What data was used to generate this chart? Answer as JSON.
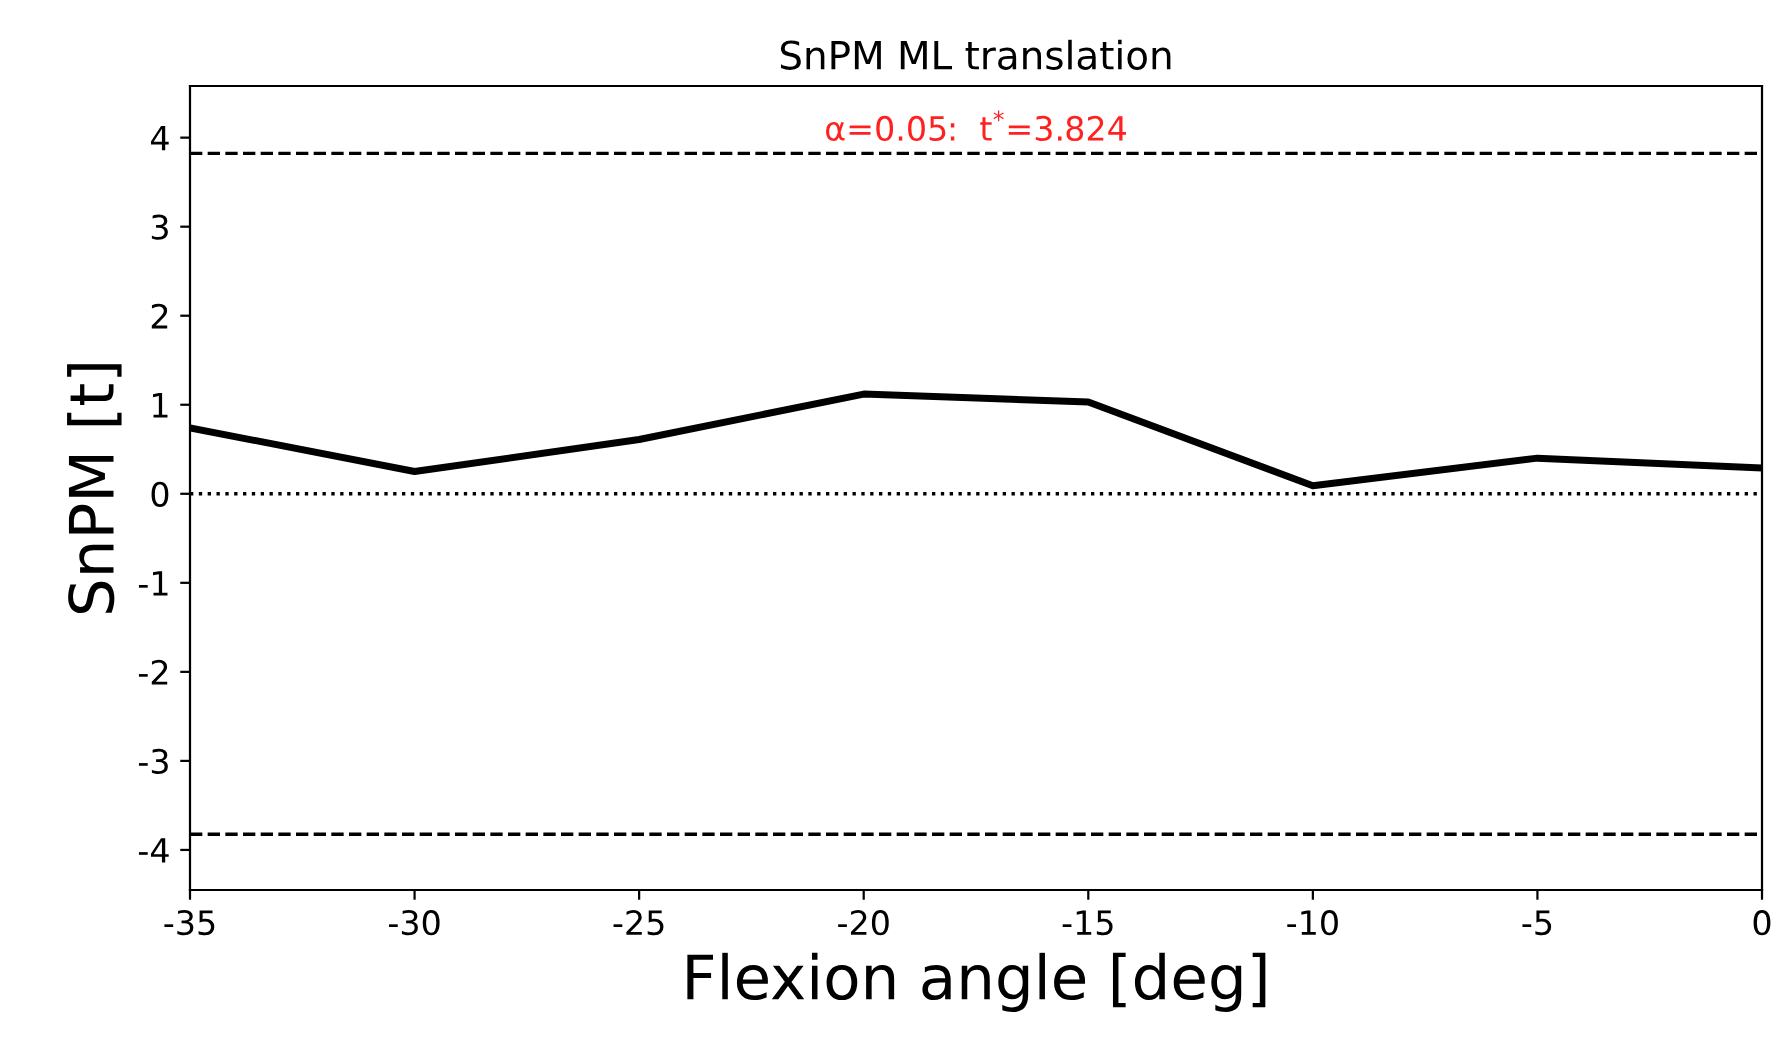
{
  "chart_data": {
    "type": "line",
    "title": "SnPM ML translation",
    "xlabel": "Flexion angle [deg]",
    "ylabel": "SnPM [t]",
    "x": [
      -35,
      -30,
      -25,
      -20,
      -15,
      -10,
      -5,
      0
    ],
    "series": [
      {
        "color": "#000000",
        "values": [
          0.74,
          0.25,
          0.61,
          1.12,
          1.03,
          0.09,
          0.4,
          0.29
        ]
      }
    ],
    "xlim": [
      -35,
      0
    ],
    "xticks": [
      -35,
      -30,
      -25,
      -20,
      -15,
      -10,
      -5,
      0
    ],
    "ylim": [
      -4.45,
      4.58
    ],
    "yticks": [
      -4,
      -3,
      -2,
      -1,
      0,
      1,
      2,
      3,
      4
    ],
    "ref_lines": [
      {
        "axis": "y",
        "value": 3.824,
        "color": "#000000",
        "line_style": "dashed"
      },
      {
        "axis": "y",
        "value": -3.824,
        "color": "#000000",
        "line_style": "dashed"
      },
      {
        "axis": "y",
        "value": 0,
        "color": "#000000",
        "line_style": "dotted"
      }
    ],
    "annotations": [
      {
        "text": "α=0.05:  t$^{*}$=3.824",
        "x": -17.5,
        "y": 3.824
      }
    ],
    "marker": "none",
    "line_style": "solid",
    "grid": false,
    "legend": false
  }
}
